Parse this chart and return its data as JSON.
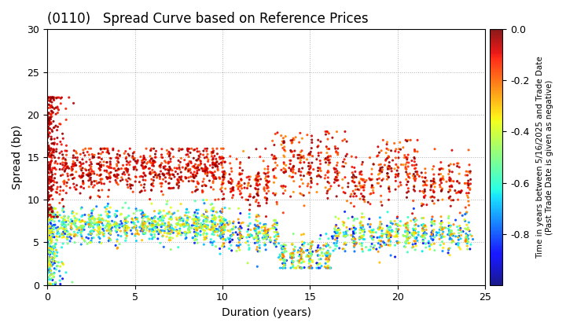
{
  "title": "(0110)   Spread Curve based on Reference Prices",
  "xlabel": "Duration (years)",
  "ylabel": "Spread (bp)",
  "colorbar_label": "Time in years between 5/16/2025 and Trade Date\n(Past Trade Date is given as negative)",
  "xlim": [
    0,
    25
  ],
  "ylim": [
    0,
    30
  ],
  "xticks": [
    0,
    5,
    10,
    15,
    20,
    25
  ],
  "yticks": [
    0,
    5,
    10,
    15,
    20,
    25,
    30
  ],
  "cmap": "jet",
  "vmin": -1.0,
  "vmax": 0.0,
  "colorbar_ticks": [
    0.0,
    -0.2,
    -0.4,
    -0.6,
    -0.8
  ],
  "seed": 42,
  "background_color": "#ffffff",
  "title_fontsize": 12,
  "axis_label_fontsize": 10,
  "tick_fontsize": 9
}
